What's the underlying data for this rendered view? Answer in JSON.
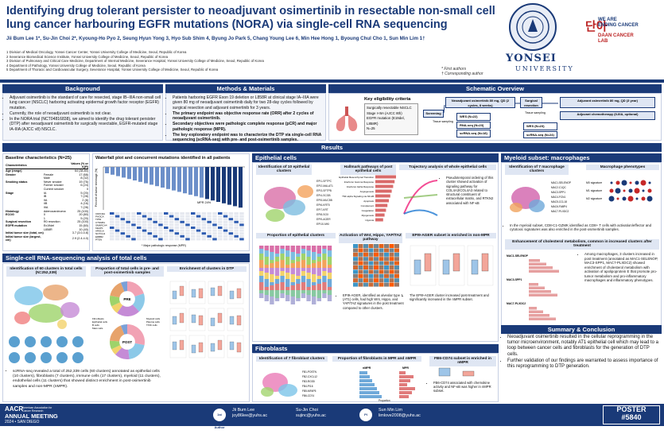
{
  "header": {
    "title": "Identifying drug tolerant persister to neoadjuvant osimertinib in resectable non-small cell lung cancer harbouring EGFR mutations (NORA) via single-cell RNA sequencing",
    "authors": "Jii Bum Lee 1*, Su-Jin Choi 2*, Kyoung-Ho Pyo 2, Seung Hyun Yong 3, Hyo Sub Shim 4, Byung Jo Park 5, Chang Young Lee 6, Min Hee Hong 1, Byoung Chul Cho 1, Sun Min Lim 1†",
    "affiliations": [
      "1 Division of Medical Oncology, Yonsei Cancer Center, Yonsei University College of Medicine, Seoul, Republic of Korea",
      "2 Severance Biomedical Science Institute, Yonsei University College of Medicine, Seoul, Republic of Korea",
      "3 Division of Pulmonary and Critical Care Medicine, Department of Internal Medicine, Severance Hospital, Yonsei University College of Medicine, Seoul, Republic of Korea",
      "4 Department of Pathology, Yonsei University College of Medicine, Seoul, Republic of Korea",
      "5 Department of Thoracic and Cardiovascular Surgery, Severance Hospital, Yonsei University College of Medicine, Seoul, Republic of Korea"
    ],
    "notes": [
      "* First authors",
      "† Corresponding author"
    ],
    "university": "YONSEI",
    "university_sub": "UNIVERSITY",
    "lab_kr": "단아",
    "lab_line1": "WE ARE\nENDING CANCER",
    "lab_line2": "DAAN CANCER\nLAB"
  },
  "background": {
    "heading": "Background",
    "bullets": [
      "Adjuvant osimertinib is the standard of care for resected, stage IB–IIIA non-small cell lung cancer (NSCLC) harboring activating epidermal growth factor receptor (EGFR) mutation.",
      "Currently, the role of neoadjuvant osimertinib is not clear.",
      "In the NORA trial (NCT04816838), we aimed to identify the drug tolerant persister (DTP) after neoadjuvant osimertinib for surgically resectable, EGFR-mutated stage IA-IIIA (AJCC v8) NSCLC."
    ]
  },
  "methods": {
    "heading": "Methods & Materials",
    "bullets": [
      "Patients harboring EGFR Exon 19 deletion or L858R at clinical stage IA–IIIA were given 80 mg of neoadjuvant osimertinib daily for two 28-day cycles followed by surgical resection and adjuvant osimertinib for 3 years.",
      "The primary endpoint was objective response rate (ORR) after 2 cycles of neoadjuvant osimertinib.",
      "Secondary objectives were pathologic complete response (pCR) and major pathologic response (MPR).",
      "The key exploratory endpoint was to characterize the DTP via single-cell RNA sequencing (scRNA-seq) with pre- and post-osimertinib samples."
    ]
  },
  "schematic": {
    "heading": "Schematic Overview",
    "criteria_title": "Key eligibility criteria",
    "criteria": [
      "Surgically resectable NSCLC",
      "Stage I-IIIA (AJCC 8th)",
      "EGFR mutation (E19del, L858R)",
      "N=25"
    ],
    "steps": [
      "Screening",
      "Neoadjuvant osimertinib 80 mg, QD (2 cycles, 8 weeks)",
      "Surgical resection",
      "Adjuvant osimertinib 80 mg, QD (3 year)"
    ],
    "assays": [
      "WES (N=22)",
      "RNA-seq (N=23)",
      "scRNA-seq (N=18)",
      "WES (N=23)",
      "scRNA-seq (N=24)"
    ],
    "labels": [
      "Tissue sampling",
      "Tissue sampling"
    ],
    "adjuvant_note": "Adjuvant chemotherapy (II-IIIA, optional)"
  },
  "results": {
    "heading": "Results",
    "baseline_title": "Baseline characteristics (N=25)",
    "baseline_cols": [
      "Characteristics",
      "Values (% or IQR)"
    ],
    "baseline_rows": [
      [
        "Age (range)",
        "",
        "64 (38-80)"
      ],
      [
        "Gender",
        "Female",
        "17 (68)"
      ],
      [
        "",
        "Male",
        "8 (32)"
      ],
      [
        "Smoking status",
        "Never smoker",
        "19 (76)"
      ],
      [
        "",
        "Former smoker",
        "6 (24)"
      ],
      [
        "",
        "Current smoker",
        "0"
      ],
      [
        "Stage",
        "IA",
        "5 (20)"
      ],
      [
        "",
        "IB",
        "7 (28)"
      ],
      [
        "",
        "IIA",
        "2 (8)"
      ],
      [
        "",
        "IIB",
        "4 (16)"
      ],
      [
        "",
        "IIIA",
        "7 (28)"
      ],
      [
        "Histology",
        "Adenocarcinoma",
        "25 (100)"
      ],
      [
        "ECOG",
        "0",
        "20 (80)"
      ],
      [
        "",
        "1",
        "5 (20)"
      ],
      [
        "Surgical resection",
        "R0 resection",
        "25 (100)"
      ],
      [
        "EGFR mutation",
        "Ex19del",
        "15 (60)"
      ],
      [
        "",
        "L858R",
        "10 (40)"
      ],
      [
        "Initial tumor size (total, cm)",
        "",
        "3.7 (3.0-4.8)"
      ],
      [
        "Initial tumor size (largest, cm)",
        "",
        "2.9 (2.4-4.0)"
      ]
    ],
    "waterfall_title": "Waterfall plot and concurrent mutations identified in all patients",
    "waterfall_ylabel": "Percent of tumor shrinkage (%)",
    "waterfall_legend": "MPR 24%",
    "waterfall_note": "* Major pathologic response (MPR)",
    "waterfall_genes": [
      "CDKN2A",
      "PIK3CA",
      "TP53",
      "CTNNB1",
      "SMARCA4",
      "KEAP1",
      "ARID1A",
      "NOTCH1",
      "ERBB2",
      "PTEN"
    ],
    "scrna_heading": "Single-cell RNA-sequencing analysis of total cells",
    "scrna_p1": "Identification of 60 clusters in total cells (N=252,339)",
    "scrna_p2": "Proportion of total cells in pre- and post-osimertinib samples",
    "scrna_p3": "Enrichment of clusters in DTP",
    "pie_labels": [
      "PRE",
      "POST"
    ],
    "pie_cats": [
      "Fibroblasts",
      "Myeloid cells",
      "Epithelial cells",
      "Plasma cells",
      "B cells",
      "T/NK cells",
      "Mast cells"
    ],
    "scrna_summary": "scRNA-seq revealed a total of 252,339 cells (60 clusters) annotated as epithelial cells (10 clusters), fibroblasts (7 clusters), immune cells (17 clusters), myeloid (11 clusters), endothelial cells (11 clusters) that showed distinct enrichment in post-osimertinib samples and non-MPR (nMPR).",
    "epi_heading": "Epithelial cells",
    "epi_p1": "Identification of 10 epithelial clusters",
    "epi_p2": "Hallmark pathways of post epithelial cells",
    "epi_p3": "Trajectory analysis of whole epithelial cells",
    "epi_p4": "Proportion of epithelial clusters",
    "epi_p5": "Activation of Wnt, Hippo, YAP/TAZ pathway",
    "epi_p6": "EPI9-AGER subset is enriched in non-MPR",
    "epi_traj_text": "Pseudotemporal ordering of this cluster showed activation of signaling pathway for COL4A3/COL4A3 related to structural constituent of extracellular matrix, and RTKN2 associated with NF-κB",
    "epi_text1": "EPI9-AGER, identified as alveolar type 1 (AT1) cells, had high Wnt, Hippo, and YAP/TAZ signatures in the post treatment compared to other clusters.",
    "epi_text2": "The EPI9-AGER cluster increased post-treatment and significantly increased in the nMPR subset.",
    "hallmarks": [
      "Epithelial Mesenchymal Transition",
      "Interferon Gamma Response",
      "Interferon Alpha Response",
      "Angiogenesis",
      "TNF-alpha Signaling via NF-kB",
      "Apoptosis",
      "Complement",
      "Coagulation",
      "Myogenesis",
      "Hypoxia"
    ],
    "fib_heading": "Fibroblasts",
    "fib_p1": "Identification of 7 fibroblast clusters",
    "fib_p2": "Proportion of fibroblasts in MPR and nMPR",
    "fib_p3": "FB6-CD74 subset is enriched in nMPR",
    "fib_cols": [
      "nMPR",
      "MPR"
    ],
    "fib_text": "FB6-CD74 associated with chemokine activity and NF-κB was higher in nMPR subset.",
    "fib_xlabel": "Proportion",
    "myeloid_heading": "Myeloid subset: macrophages",
    "my_p1": "Identification of 7 macrophage clusters",
    "my_p2": "Macrophage phenotypes",
    "my_phen": [
      "M0 signature",
      "M1 signature",
      "M2 signature"
    ],
    "my_text1": "In the myeloid subset, CD8-C1-GZMK identified as CD8+ T cells with activation/effector and cytotoxic signatures was also enriched in the post-osimertinib samples.",
    "my_p3": "Enhancement of cholesterol metabolism, common in increased clusters after treatment",
    "my_text2": "Among macrophages, 3 clusters increased in post treatment (annotated as MAC1-SELENOP, MAC3-SPP1, MAC7-PLXDC2) showed enrichment of cholesterol metabolism with activation of apolipoprotein E that promote pro-tumor metabolism and pro-inflammatory macrophages and inflammatory phenotypes.",
    "mac_rows": [
      "MAC1-SELENOP",
      "MAC3-SPP1",
      "MAC7-PLXDC2"
    ]
  },
  "summary": {
    "heading": "Summary & Conclusion",
    "bullets": [
      "Neoadjuvant osimertinib resulted in the cellular reprogramming in the tumor microenvironment, notably AT1 epithelial cell which may lead to a loop between cancer cells and fibroblasts for the generation of DTP cells.",
      "Further validation of our findings are warranted to assess importance of this reprogramming to DTP generation."
    ]
  },
  "footer": {
    "meeting_logo": "AACR",
    "meeting": "ANNUAL MEETING",
    "meeting_sub": "2024 • SAN DIEGO",
    "assoc": "American Association for Cancer Research",
    "author1_role": "1st Author",
    "author1_name": "Jii Bum Lee",
    "author1_email": "joy86lee@yuhs.ac",
    "author2_name": "Su-Jin Choi",
    "author2_email": "sujinc@yuhs.ac",
    "pi_role": "PI",
    "pi_name": "Sun Min Lim",
    "pi_email": "limlove2008@yuhs.ac",
    "poster_label": "POSTER",
    "poster_no": "#5840"
  },
  "colors": {
    "primary": "#1a3a78",
    "panel": "#f3f5fa",
    "accent": "#c62828"
  }
}
